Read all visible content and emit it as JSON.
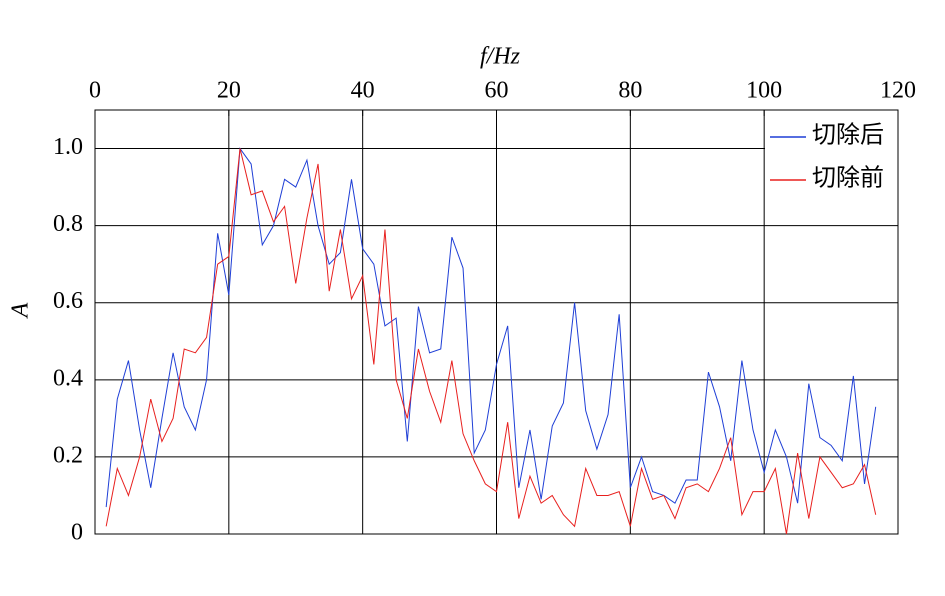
{
  "chart_data": {
    "type": "line",
    "x_label": "f/Hz",
    "y_label": "A",
    "x": [
      1.67,
      3.33,
      5,
      6.67,
      8.33,
      10,
      11.67,
      13.33,
      15,
      16.67,
      18.33,
      20,
      21.67,
      23.33,
      25,
      26.67,
      28.33,
      30,
      31.67,
      33.33,
      35,
      36.67,
      38.33,
      40,
      41.67,
      43.33,
      45,
      46.67,
      48.33,
      50,
      51.67,
      53.33,
      55,
      56.67,
      58.33,
      60,
      61.67,
      63.33,
      65,
      66.67,
      68.33,
      70,
      71.67,
      73.33,
      75,
      76.67,
      78.33,
      80,
      81.67,
      83.33,
      85,
      86.67,
      88.33,
      90,
      91.67,
      93.33,
      95,
      96.67,
      98.33,
      100,
      101.67,
      103.33,
      105,
      106.67,
      108.33,
      110,
      111.67,
      113.33,
      115,
      116.67
    ],
    "series": [
      {
        "name": "切除后",
        "color": "#1f3fd6",
        "values": [
          0.07,
          0.35,
          0.45,
          0.27,
          0.12,
          0.3,
          0.47,
          0.33,
          0.27,
          0.4,
          0.78,
          0.62,
          1.0,
          0.96,
          0.75,
          0.8,
          0.92,
          0.9,
          0.97,
          0.8,
          0.7,
          0.73,
          0.92,
          0.74,
          0.7,
          0.54,
          0.56,
          0.24,
          0.59,
          0.47,
          0.48,
          0.77,
          0.69,
          0.21,
          0.27,
          0.44,
          0.54,
          0.12,
          0.27,
          0.09,
          0.28,
          0.34,
          0.6,
          0.32,
          0.22,
          0.31,
          0.57,
          0.12,
          0.2,
          0.11,
          0.1,
          0.08,
          0.14,
          0.14,
          0.42,
          0.33,
          0.19,
          0.45,
          0.27,
          0.16,
          0.27,
          0.2,
          0.08,
          0.39,
          0.25,
          0.23,
          0.19,
          0.41,
          0.13,
          0.33
        ]
      },
      {
        "name": "切除前",
        "color": "#e8201e",
        "values": [
          0.02,
          0.17,
          0.1,
          0.2,
          0.35,
          0.24,
          0.3,
          0.48,
          0.47,
          0.51,
          0.7,
          0.72,
          1.0,
          0.88,
          0.89,
          0.81,
          0.85,
          0.65,
          0.82,
          0.96,
          0.63,
          0.79,
          0.61,
          0.67,
          0.44,
          0.79,
          0.4,
          0.3,
          0.48,
          0.37,
          0.29,
          0.45,
          0.26,
          0.19,
          0.13,
          0.11,
          0.29,
          0.04,
          0.15,
          0.08,
          0.1,
          0.05,
          0.02,
          0.17,
          0.1,
          0.1,
          0.11,
          0.02,
          0.17,
          0.09,
          0.1,
          0.04,
          0.12,
          0.13,
          0.11,
          0.17,
          0.25,
          0.05,
          0.11,
          0.11,
          0.17,
          0.0,
          0.21,
          0.04,
          0.2,
          0.16,
          0.12,
          0.13,
          0.18,
          0.05
        ]
      }
    ],
    "xlim": [
      0,
      120
    ],
    "xticks": [
      0,
      20,
      40,
      60,
      80,
      100,
      120
    ],
    "ylim": [
      0,
      1.1
    ],
    "yticks": [
      0,
      0.2,
      0.4,
      0.6,
      0.8,
      {
        "value": 1,
        "label": "1.0"
      }
    ],
    "grid": true,
    "legend": "upper right"
  }
}
